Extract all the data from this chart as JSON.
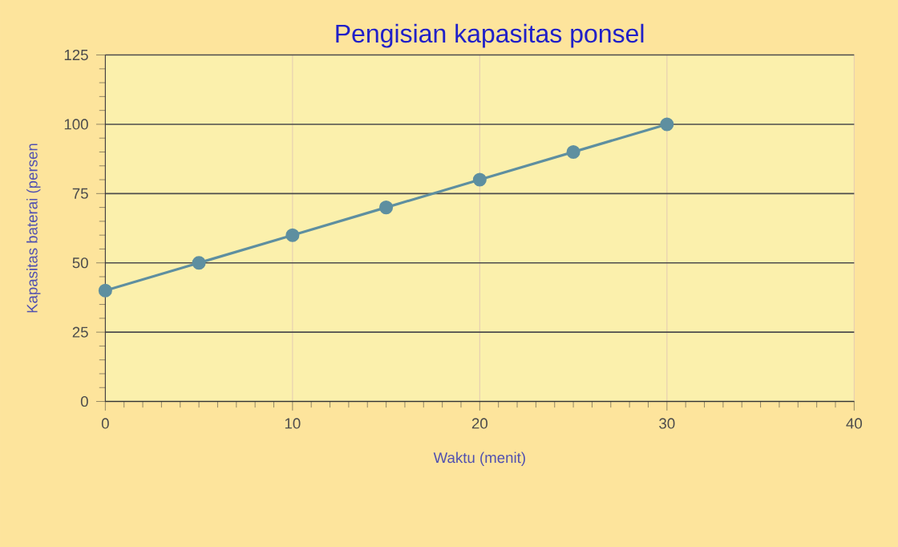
{
  "chart_data": {
    "type": "line",
    "title": "Pengisian kapasitas ponsel",
    "xlabel": "Waktu (menit)",
    "ylabel": "Kapasitas baterai (persen",
    "x": [
      0,
      5,
      10,
      15,
      20,
      25,
      30
    ],
    "series": [
      {
        "color": "#5e8fa0",
        "values": [
          40,
          50,
          60,
          70,
          80,
          90,
          100
        ]
      }
    ],
    "xlim": [
      0,
      40
    ],
    "xticks": [
      0,
      10,
      20,
      30,
      40
    ],
    "ylim": [
      0,
      125
    ],
    "yticks": [
      0,
      25,
      50,
      75,
      100,
      125
    ],
    "grid": true,
    "marker": "circle",
    "line_style": "solid"
  }
}
